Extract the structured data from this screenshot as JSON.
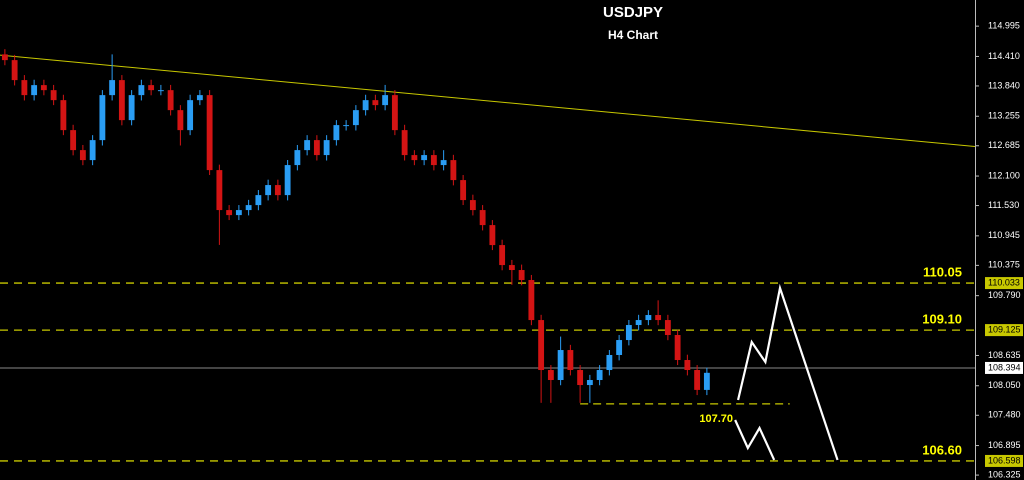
{
  "chart_data": {
    "type": "candlestick",
    "title": "USDJPY",
    "subtitle": "H4 Chart",
    "up_color": "#2a9df4",
    "down_color": "#d41414",
    "xlim": [
      0,
      100
    ],
    "ylim": [
      106.23,
      115.5
    ],
    "yticks": [
      114.995,
      {
        "value": 114.41,
        "label": "114.410"
      },
      {
        "value": 113.84,
        "label": "113.840"
      },
      113.255,
      112.685,
      {
        "value": 112.1,
        "label": "112.100"
      },
      {
        "value": 111.53,
        "label": "111.530"
      },
      110.945,
      110.375,
      {
        "value": 109.79,
        "label": "109.790"
      },
      108.635,
      {
        "value": 108.05,
        "label": "108.050"
      },
      {
        "value": 107.48,
        "label": "107.480"
      },
      106.895,
      106.325
    ],
    "open": [
      114.45,
      114.339,
      113.953,
      113.663,
      113.856,
      113.759,
      113.566,
      112.987,
      112.601,
      112.408,
      112.794,
      113.663,
      113.953,
      113.18,
      113.663,
      113.856,
      113.759,
      113.759,
      113.373,
      112.987,
      113.566,
      113.663,
      112.215,
      111.443,
      111.346,
      111.443,
      111.539,
      111.732,
      111.926,
      111.732,
      112.312,
      112.601,
      112.794,
      112.505,
      112.794,
      113.084,
      113.084,
      113.373,
      113.566,
      113.47,
      113.663,
      112.987,
      112.505,
      112.408,
      112.505,
      112.312,
      112.408,
      112.022,
      111.636,
      111.443,
      111.153,
      110.767,
      110.381,
      110.285,
      110.092,
      109.319,
      108.354,
      108.161,
      108.74,
      108.354,
      108.064,
      108.161,
      108.354,
      108.644,
      108.933,
      109.223,
      109.319,
      109.416,
      109.319,
      109.03,
      108.547,
      108.354,
      107.97
    ],
    "high": [
      114.55,
      114.44,
      114.05,
      113.96,
      113.96,
      113.86,
      113.67,
      113.09,
      112.7,
      112.89,
      113.76,
      114.45,
      114.05,
      113.76,
      113.96,
      113.96,
      113.86,
      113.86,
      113.47,
      113.67,
      113.76,
      113.76,
      112.32,
      111.54,
      111.54,
      111.64,
      111.83,
      112.03,
      112.03,
      112.41,
      112.7,
      112.89,
      112.89,
      112.89,
      113.18,
      113.18,
      113.47,
      113.67,
      113.67,
      113.86,
      113.76,
      113.09,
      112.6,
      112.6,
      112.6,
      112.6,
      112.51,
      112.12,
      111.74,
      111.54,
      111.25,
      110.87,
      110.48,
      110.39,
      110.19,
      109.42,
      108.45,
      109.0,
      108.84,
      108.45,
      108.26,
      108.45,
      108.74,
      109.03,
      109.32,
      109.42,
      109.51,
      109.7,
      109.42,
      109.13,
      108.65,
      108.45,
      108.4
    ],
    "low": [
      114.24,
      113.85,
      113.56,
      113.56,
      113.66,
      113.47,
      112.89,
      112.5,
      112.31,
      112.31,
      112.69,
      113.56,
      113.08,
      113.08,
      113.56,
      113.66,
      113.66,
      113.27,
      112.69,
      112.89,
      113.47,
      112.12,
      110.77,
      111.25,
      111.25,
      111.34,
      111.44,
      111.63,
      111.63,
      111.63,
      112.21,
      112.5,
      112.4,
      112.4,
      112.69,
      112.98,
      112.98,
      113.27,
      113.37,
      113.37,
      112.89,
      112.4,
      112.31,
      112.31,
      112.21,
      112.21,
      111.92,
      111.54,
      111.34,
      111.05,
      110.67,
      110.28,
      110.0,
      109.99,
      109.22,
      107.72,
      107.72,
      108.06,
      108.25,
      107.72,
      107.72,
      108.06,
      108.25,
      108.54,
      108.83,
      109.12,
      109.22,
      109.22,
      108.93,
      108.45,
      108.25,
      107.87,
      107.87
    ],
    "close": [
      114.339,
      113.953,
      113.663,
      113.856,
      113.759,
      113.566,
      112.987,
      112.601,
      112.408,
      112.794,
      113.663,
      113.953,
      113.18,
      113.663,
      113.856,
      113.759,
      113.759,
      113.373,
      112.987,
      113.566,
      113.663,
      112.215,
      111.443,
      111.346,
      111.443,
      111.539,
      111.732,
      111.926,
      111.732,
      112.312,
      112.601,
      112.794,
      112.505,
      112.794,
      113.084,
      113.084,
      113.373,
      113.566,
      113.47,
      113.663,
      112.987,
      112.505,
      112.408,
      112.505,
      112.312,
      112.408,
      112.022,
      111.636,
      111.443,
      111.153,
      110.767,
      110.381,
      110.285,
      110.092,
      109.319,
      108.354,
      108.161,
      108.74,
      108.354,
      108.064,
      108.161,
      108.354,
      108.644,
      108.933,
      109.223,
      109.319,
      109.416,
      109.319,
      109.03,
      108.547,
      108.354,
      107.97,
      108.3
    ],
    "trendline": {
      "color": "#c8c800",
      "x": [
        0,
        100
      ],
      "y": [
        114.435,
        112.67
      ]
    },
    "levels": [
      {
        "price": 110.033,
        "annotation": "110.05"
      },
      {
        "price": 109.125,
        "annotation": "109.10"
      },
      {
        "price": 106.598,
        "annotation": "106.60"
      }
    ],
    "short_levels": [
      {
        "price": 107.7,
        "annotation": "107.70",
        "x": [
          59.5,
          81
        ]
      }
    ],
    "level_color": "#c8c800",
    "current_price": 108.394,
    "projections": [
      {
        "color": "#ffffff",
        "x": [
          75.7,
          77.1,
          78.5,
          80.0,
          85.9
        ],
        "y": [
          107.775,
          108.895,
          108.509,
          109.937,
          106.617
        ]
      },
      {
        "color": "#ffffff",
        "x": [
          75.4,
          76.7,
          77.9,
          79.4
        ],
        "y": [
          107.389,
          106.848,
          107.234,
          106.617
        ]
      }
    ]
  }
}
